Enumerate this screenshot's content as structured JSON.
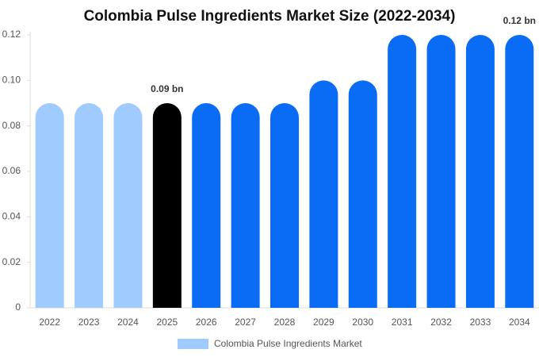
{
  "chart_data": {
    "type": "bar",
    "title": "Colombia Pulse Ingredients Market Size (2022-2034)",
    "categories": [
      "2022",
      "2023",
      "2024",
      "2025",
      "2026",
      "2027",
      "2028",
      "2029",
      "2030",
      "2031",
      "2032",
      "2033",
      "2034"
    ],
    "series": [
      {
        "name": "Colombia Pulse Ingredients Market",
        "color": "#a0cbff",
        "colors": [
          "#a0cbff",
          "#a0cbff",
          "#a0cbff",
          "#000000",
          "#0a6cf5",
          "#0a6cf5",
          "#0a6cf5",
          "#0a6cf5",
          "#0a6cf5",
          "#0a6cf5",
          "#0a6cf5",
          "#0a6cf5",
          "#0a6cf5"
        ],
        "values": [
          0.09,
          0.09,
          0.09,
          0.09,
          0.09,
          0.09,
          0.09,
          0.1,
          0.1,
          0.12,
          0.12,
          0.12,
          0.12
        ],
        "value_labels": [
          null,
          null,
          null,
          "0.09 bn",
          null,
          null,
          null,
          null,
          null,
          null,
          null,
          null,
          "0.12 bn"
        ]
      }
    ],
    "ylim": [
      0,
      0.12
    ],
    "yticks": [
      0,
      0.02,
      0.04,
      0.06,
      0.08,
      {
        "value": 0.1,
        "label": "0.10"
      },
      0.12
    ]
  }
}
